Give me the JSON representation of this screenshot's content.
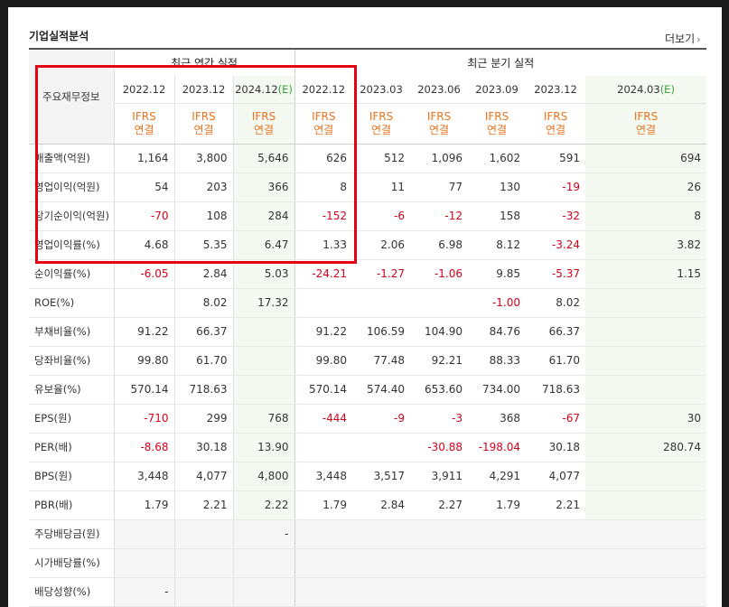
{
  "header": {
    "title": "기업실적분석",
    "more_label": "더보기"
  },
  "table": {
    "label_header": "주요재무정보",
    "group_annual": "최근 연간 실적",
    "group_quarter": "최근 분기 실적",
    "periods": [
      {
        "date": "2022.12",
        "est": false
      },
      {
        "date": "2023.12",
        "est": false
      },
      {
        "date": "2024.12",
        "est": true
      },
      {
        "date": "2022.12",
        "est": false
      },
      {
        "date": "2023.03",
        "est": false
      },
      {
        "date": "2023.06",
        "est": false
      },
      {
        "date": "2023.09",
        "est": false
      },
      {
        "date": "2023.12",
        "est": false
      },
      {
        "date": "2024.03",
        "est": true
      }
    ],
    "est_label": "(E)",
    "ifrs_top": "IFRS",
    "ifrs_bottom": "연결",
    "rows": [
      {
        "label": "매출액(억원)",
        "values": [
          "1,164",
          "3,800",
          "5,646",
          "626",
          "512",
          "1,096",
          "1,602",
          "591",
          "694"
        ]
      },
      {
        "label": "영업이익(억원)",
        "values": [
          "54",
          "203",
          "366",
          "8",
          "11",
          "77",
          "130",
          "-19",
          "26"
        ]
      },
      {
        "label": "당기순이익(억원)",
        "values": [
          "-70",
          "108",
          "284",
          "-152",
          "-6",
          "-12",
          "158",
          "-32",
          "8"
        ]
      },
      {
        "label": "영업이익률(%)",
        "values": [
          "4.68",
          "5.35",
          "6.47",
          "1.33",
          "2.06",
          "6.98",
          "8.12",
          "-3.24",
          "3.82"
        ]
      },
      {
        "label": "순이익률(%)",
        "values": [
          "-6.05",
          "2.84",
          "5.03",
          "-24.21",
          "-1.27",
          "-1.06",
          "9.85",
          "-5.37",
          "1.15"
        ]
      },
      {
        "label": "ROE(%)",
        "values": [
          "",
          "8.02",
          "17.32",
          "",
          "",
          "",
          "-1.00",
          "8.02",
          ""
        ]
      },
      {
        "label": "부채비율(%)",
        "values": [
          "91.22",
          "66.37",
          "",
          "91.22",
          "106.59",
          "104.90",
          "84.76",
          "66.37",
          ""
        ],
        "group_start": true
      },
      {
        "label": "당좌비율(%)",
        "values": [
          "99.80",
          "61.70",
          "",
          "99.80",
          "77.48",
          "92.21",
          "88.33",
          "61.70",
          ""
        ]
      },
      {
        "label": "유보율(%)",
        "values": [
          "570.14",
          "718.63",
          "",
          "570.14",
          "574.40",
          "653.60",
          "734.00",
          "718.63",
          ""
        ]
      },
      {
        "label": "EPS(원)",
        "values": [
          "-710",
          "299",
          "768",
          "-444",
          "-9",
          "-3",
          "368",
          "-67",
          "30"
        ],
        "group_start": true
      },
      {
        "label": "PER(배)",
        "values": [
          "-8.68",
          "30.18",
          "13.90",
          "",
          "",
          "-30.88",
          "-198.04",
          "30.18",
          "280.74"
        ]
      },
      {
        "label": "BPS(원)",
        "values": [
          "3,448",
          "4,077",
          "4,800",
          "3,448",
          "3,517",
          "3,911",
          "4,291",
          "4,077",
          ""
        ]
      },
      {
        "label": "PBR(배)",
        "values": [
          "1.79",
          "2.21",
          "2.22",
          "1.79",
          "2.84",
          "2.27",
          "1.79",
          "2.21",
          ""
        ]
      },
      {
        "label": "주당배당금(원)",
        "values": [
          "",
          "",
          "-",
          "",
          "",
          "",
          "",
          "",
          ""
        ],
        "group_start": true,
        "empty_bg": true
      },
      {
        "label": "시가배당률(%)",
        "values": [
          "",
          "",
          "",
          "",
          "",
          "",
          "",
          "",
          ""
        ],
        "empty_bg": true
      },
      {
        "label": "배당성향(%)",
        "values": [
          "-",
          "",
          "",
          "",
          "",
          "",
          "",
          "",
          ""
        ],
        "empty_bg": true
      }
    ]
  },
  "colors": {
    "negative": "#d0021b",
    "ifrs": "#e8731f",
    "estimate": "#3aa136",
    "highlight": "#e60012"
  }
}
